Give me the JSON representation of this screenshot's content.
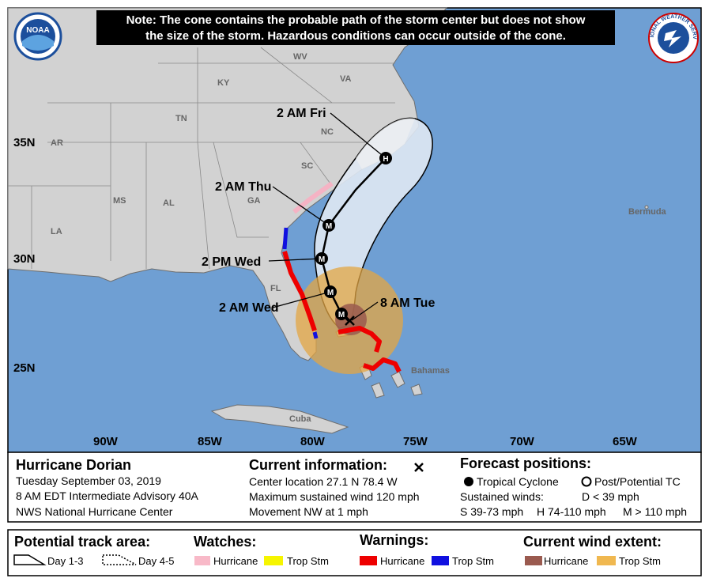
{
  "header": {
    "note": [
      "Note: The cone contains the probable path of the storm center but does not show",
      "the size of the storm. Hazardous conditions can occur outside of the cone."
    ]
  },
  "logos": {
    "noaa": "NOAA",
    "nws": "NATIONAL WEATHER SERVICE"
  },
  "map": {
    "places": [
      "WV",
      "VA",
      "KY",
      "TN",
      "NC",
      "SC",
      "AR",
      "MS",
      "AL",
      "GA",
      "LA",
      "FL",
      "Bermuda",
      "Bahamas",
      "Cuba"
    ],
    "latitudes": [
      "35N",
      "30N",
      "25N"
    ],
    "longitudes": [
      "90W",
      "85W",
      "80W",
      "75W",
      "70W",
      "65W"
    ],
    "forecast_times": [
      "2 AM Fri",
      "2 AM Thu",
      "2 PM Wed",
      "2 AM Wed",
      "8 AM Tue"
    ],
    "positions": [
      "H",
      "M",
      "M",
      "M",
      "M"
    ]
  },
  "info": {
    "storm": {
      "name": "Hurricane Dorian",
      "lines": [
        "Tuesday September 03, 2019",
        "8 AM EDT Intermediate Advisory 40A",
        "NWS National Hurricane Center"
      ]
    },
    "current": {
      "title": "Current information:",
      "lines": [
        "Center location 27.1 N 78.4 W",
        "Maximum sustained wind 120 mph",
        "Movement NW at 1 mph"
      ]
    },
    "forecast": {
      "title": "Forecast positions:",
      "tropical": "Tropical Cyclone",
      "post": "Post/Potential TC",
      "winds": "Sustained winds:",
      "d": "D < 39 mph",
      "s": "S 39-73 mph",
      "h": "H 74-110 mph",
      "m": "M > 110 mph"
    }
  },
  "legend": {
    "track": {
      "title": "Potential track area:",
      "day13": "Day 1-3",
      "day45": "Day 4-5"
    },
    "watches": {
      "title": "Watches:",
      "hurricane": "Hurricane",
      "tropical": "Trop Stm"
    },
    "warnings": {
      "title": "Warnings:",
      "hurricane": "Hurricane",
      "tropical": "Trop Stm"
    },
    "wind": {
      "title": "Current wind extent:",
      "hurricane": "Hurricane",
      "tropical": "Trop Stm"
    }
  }
}
